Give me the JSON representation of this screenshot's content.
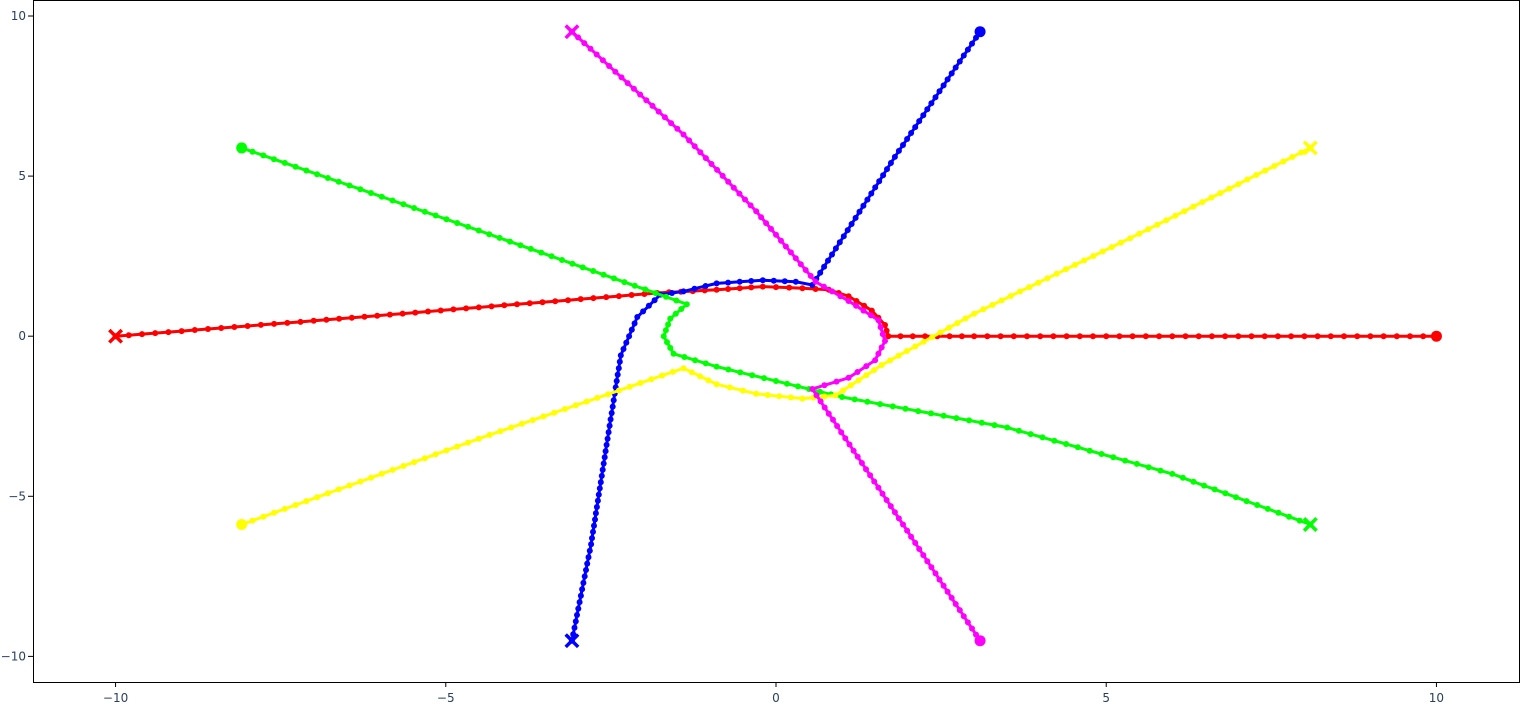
{
  "chart_data": {
    "type": "scatter",
    "mode": "lines+markers",
    "title": "",
    "xlabel": "",
    "ylabel": "",
    "xlim": [
      -11.25,
      11.25
    ],
    "ylim": [
      -10.8,
      10.5
    ],
    "grid": false,
    "legend": "none",
    "x_ticks": [
      {
        "value": -10,
        "label": "−10"
      },
      {
        "value": -5,
        "label": "−5"
      },
      {
        "value": 0,
        "label": "0"
      },
      {
        "value": 5,
        "label": "5"
      },
      {
        "value": 10,
        "label": "10"
      }
    ],
    "y_ticks": [
      {
        "value": 10,
        "label": "10"
      },
      {
        "value": 5,
        "label": "5"
      },
      {
        "value": 0,
        "label": "0"
      },
      {
        "value": -5,
        "label": "−5"
      },
      {
        "value": -10,
        "label": "−10"
      }
    ],
    "series": [
      {
        "color": "#ff0000",
        "start": [
          10,
          0
        ],
        "end": [
          -10,
          0
        ],
        "waypoints": [
          [
            10,
            0
          ],
          [
            6,
            0
          ],
          [
            3,
            0
          ],
          [
            1.7,
            0
          ],
          [
            1.65,
            0.35
          ],
          [
            1.45,
            0.8
          ],
          [
            1.1,
            1.25
          ],
          [
            0.8,
            1.45
          ],
          [
            0.4,
            1.5
          ],
          [
            -0.2,
            1.55
          ],
          [
            -0.9,
            1.45
          ],
          [
            -1.8,
            1.35
          ],
          [
            -4.5,
            0.9
          ],
          [
            -7,
            0.48
          ],
          [
            -10,
            0
          ]
        ]
      },
      {
        "color": "#0000ff",
        "start": [
          3.09,
          9.51
        ],
        "end": [
          -3.09,
          -9.51
        ],
        "waypoints": [
          [
            3.09,
            9.51
          ],
          [
            1.8,
            5.6
          ],
          [
            0.55,
            1.6
          ],
          [
            0.3,
            1.7
          ],
          [
            -0.2,
            1.75
          ],
          [
            -0.9,
            1.65
          ],
          [
            -1.4,
            1.4
          ],
          [
            -1.75,
            1.3
          ],
          [
            -2.1,
            0.6
          ],
          [
            -2.35,
            -0.6
          ],
          [
            -2.55,
            -3.2
          ],
          [
            -2.8,
            -6.5
          ],
          [
            -3.09,
            -9.51
          ]
        ]
      },
      {
        "color": "#00ff00",
        "start": [
          -8.09,
          5.88
        ],
        "end": [
          8.09,
          -5.88
        ],
        "waypoints": [
          [
            -8.09,
            5.88
          ],
          [
            -4.5,
            3.3
          ],
          [
            -1.35,
            1.0
          ],
          [
            -1.6,
            0.55
          ],
          [
            -1.7,
            0.0
          ],
          [
            -1.55,
            -0.55
          ],
          [
            -0.9,
            -0.95
          ],
          [
            0.0,
            -1.4
          ],
          [
            1.0,
            -1.9
          ],
          [
            3.5,
            -2.85
          ],
          [
            6.0,
            -4.3
          ],
          [
            8.09,
            -5.88
          ]
        ]
      },
      {
        "color": "#ffff00",
        "start": [
          -8.09,
          -5.88
        ],
        "end": [
          8.09,
          5.88
        ],
        "waypoints": [
          [
            -8.09,
            -5.88
          ],
          [
            -4.5,
            -3.2
          ],
          [
            -1.4,
            -1.0
          ],
          [
            -0.9,
            -1.5
          ],
          [
            -0.3,
            -1.8
          ],
          [
            0.4,
            -1.95
          ],
          [
            0.9,
            -1.85
          ],
          [
            1.6,
            -0.9
          ],
          [
            3.0,
            0.7
          ],
          [
            5.5,
            3.2
          ],
          [
            8.09,
            5.88
          ]
        ]
      },
      {
        "color": "#ff00ff",
        "start": [
          3.09,
          -9.51
        ],
        "end": [
          -3.09,
          9.51
        ],
        "waypoints": [
          [
            3.09,
            -9.51
          ],
          [
            1.8,
            -5.5
          ],
          [
            0.55,
            -1.65
          ],
          [
            1.1,
            -1.3
          ],
          [
            1.5,
            -0.75
          ],
          [
            1.65,
            -0.15
          ],
          [
            1.55,
            0.5
          ],
          [
            1.1,
            1.1
          ],
          [
            0.6,
            1.7
          ],
          [
            -0.3,
            3.9
          ],
          [
            -1.4,
            6.3
          ],
          [
            -3.09,
            9.51
          ]
        ]
      }
    ]
  }
}
